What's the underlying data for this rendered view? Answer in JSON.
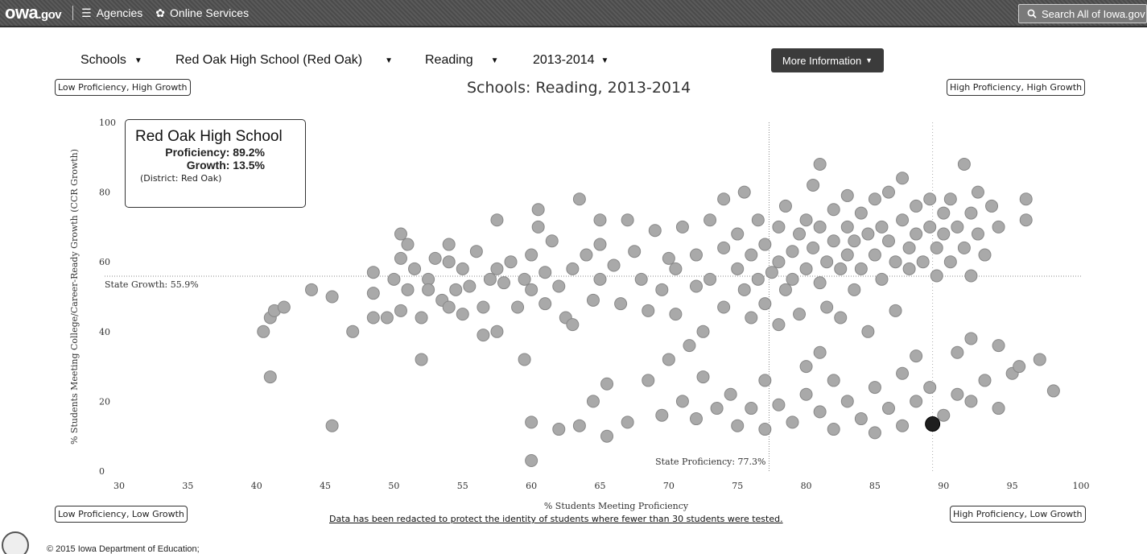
{
  "nav": {
    "logo_main": "owa",
    "logo_suffix": ".gov",
    "agencies_label": "Agencies",
    "agencies_icon": "list-icon",
    "services_label": "Online Services",
    "services_icon": "gear-icon",
    "search_label": "Search All of Iowa.gov",
    "search_icon": "search-icon"
  },
  "filters": {
    "level": "Schools",
    "school": "Red Oak High School (Red Oak)",
    "subject": "Reading",
    "year": "2013-2014",
    "more_info": "More Information"
  },
  "quadrants": {
    "top_left": "Low Proficiency, High Growth",
    "top_right": "High Proficiency, High Growth",
    "bottom_left": "Low Proficiency, Low Growth",
    "bottom_right": "High Proficiency, Low Growth"
  },
  "highlight": {
    "name": "Red Oak High School",
    "proficiency_text": "Proficiency: 89.2%",
    "growth_text": "Growth: 13.5%",
    "district_text": "(District: Red Oak)"
  },
  "redaction_note": "Data has been redacted to protect the identity of students where fewer than 30 students were tested.",
  "footer": "© 2015 Iowa Department of Education;",
  "colors": {
    "point_fill": "#a9a9a9",
    "point_stroke": "#888888",
    "highlight_fill": "#1e1e1e",
    "nav_bg": "#4f4f4f"
  },
  "chart_data": {
    "type": "scatter",
    "title": "Schools: Reading, 2013-2014",
    "xlabel": "% Students Meeting Proficiency",
    "ylabel": "% Students Meeting College/Career-Ready Growth (CCR Growth)",
    "xlim": [
      30,
      100
    ],
    "ylim": [
      0,
      100
    ],
    "xticks": [
      30,
      35,
      40,
      45,
      50,
      55,
      60,
      65,
      70,
      75,
      80,
      85,
      90,
      95,
      100
    ],
    "yticks": [
      0,
      20,
      40,
      60,
      80,
      100
    ],
    "reference_lines": {
      "state_proficiency": 77.3,
      "state_proficiency_label": "State Proficiency: 77.3%",
      "state_growth": 55.9,
      "state_growth_label": "State Growth: 55.9%"
    },
    "highlight_point": {
      "x": 89.2,
      "y": 13.5
    },
    "points": [
      [
        40.5,
        40
      ],
      [
        41,
        44
      ],
      [
        41.3,
        46
      ],
      [
        42,
        47
      ],
      [
        41,
        27
      ],
      [
        44,
        52
      ],
      [
        45.5,
        50
      ],
      [
        45.5,
        13
      ],
      [
        47,
        40
      ],
      [
        48.5,
        44
      ],
      [
        48.5,
        57
      ],
      [
        48.5,
        51
      ],
      [
        49.5,
        44
      ],
      [
        50.5,
        46
      ],
      [
        50,
        55
      ],
      [
        50.5,
        61
      ],
      [
        50.5,
        68
      ],
      [
        51,
        65
      ],
      [
        51,
        52
      ],
      [
        51.5,
        58
      ],
      [
        52,
        44
      ],
      [
        52,
        32
      ],
      [
        52.5,
        55
      ],
      [
        52.5,
        52
      ],
      [
        53,
        61
      ],
      [
        53.5,
        49
      ],
      [
        54,
        60
      ],
      [
        54,
        47
      ],
      [
        54,
        65
      ],
      [
        54.5,
        52
      ],
      [
        55,
        58
      ],
      [
        55,
        45
      ],
      [
        55.5,
        53
      ],
      [
        56,
        63
      ],
      [
        56.5,
        47
      ],
      [
        56.5,
        39
      ],
      [
        57,
        55
      ],
      [
        57.5,
        72
      ],
      [
        57.5,
        58
      ],
      [
        57.5,
        40
      ],
      [
        58,
        54
      ],
      [
        58.5,
        60
      ],
      [
        59,
        47
      ],
      [
        59.5,
        55
      ],
      [
        59.5,
        32
      ],
      [
        60,
        62
      ],
      [
        60,
        52
      ],
      [
        60,
        14
      ],
      [
        60,
        3
      ],
      [
        60.5,
        70
      ],
      [
        60.5,
        75
      ],
      [
        61,
        57
      ],
      [
        61,
        48
      ],
      [
        61.5,
        66
      ],
      [
        62,
        53
      ],
      [
        62,
        12
      ],
      [
        62.5,
        44
      ],
      [
        63,
        58
      ],
      [
        63,
        42
      ],
      [
        63.5,
        78
      ],
      [
        63.5,
        13
      ],
      [
        64,
        62
      ],
      [
        64.5,
        49
      ],
      [
        64.5,
        20
      ],
      [
        65,
        55
      ],
      [
        65,
        72
      ],
      [
        65,
        65
      ],
      [
        65.5,
        25
      ],
      [
        65.5,
        10
      ],
      [
        66,
        59
      ],
      [
        66.5,
        48
      ],
      [
        67,
        14
      ],
      [
        67,
        72
      ],
      [
        67.5,
        63
      ],
      [
        68,
        55
      ],
      [
        68.5,
        46
      ],
      [
        68.5,
        26
      ],
      [
        69,
        69
      ],
      [
        69.5,
        52
      ],
      [
        69.5,
        16
      ],
      [
        70,
        61
      ],
      [
        70,
        32
      ],
      [
        70.5,
        58
      ],
      [
        70.5,
        45
      ],
      [
        71,
        70
      ],
      [
        71,
        20
      ],
      [
        71.5,
        36
      ],
      [
        72,
        53
      ],
      [
        72,
        62
      ],
      [
        72,
        15
      ],
      [
        72.5,
        40
      ],
      [
        72.5,
        27
      ],
      [
        73,
        72
      ],
      [
        73,
        55
      ],
      [
        73.5,
        18
      ],
      [
        74,
        64
      ],
      [
        74,
        47
      ],
      [
        74,
        78
      ],
      [
        74.5,
        22
      ],
      [
        75,
        58
      ],
      [
        75,
        68
      ],
      [
        75,
        13
      ],
      [
        75.5,
        52
      ],
      [
        75.5,
        80
      ],
      [
        76,
        62
      ],
      [
        76,
        44
      ],
      [
        76,
        18
      ],
      [
        76.5,
        55
      ],
      [
        76.5,
        72
      ],
      [
        77,
        65
      ],
      [
        77,
        48
      ],
      [
        77,
        26
      ],
      [
        77,
        12
      ],
      [
        77.5,
        57
      ],
      [
        78,
        60
      ],
      [
        78,
        70
      ],
      [
        78,
        42
      ],
      [
        78,
        19
      ],
      [
        78.5,
        52
      ],
      [
        78.5,
        76
      ],
      [
        79,
        63
      ],
      [
        79,
        55
      ],
      [
        79,
        14
      ],
      [
        79.5,
        68
      ],
      [
        79.5,
        45
      ],
      [
        80,
        72
      ],
      [
        80,
        58
      ],
      [
        80,
        30
      ],
      [
        80,
        22
      ],
      [
        80.5,
        64
      ],
      [
        80.5,
        82
      ],
      [
        81,
        54
      ],
      [
        81,
        70
      ],
      [
        81,
        88
      ],
      [
        81,
        34
      ],
      [
        81,
        17
      ],
      [
        81.5,
        60
      ],
      [
        81.5,
        47
      ],
      [
        82,
        66
      ],
      [
        82,
        75
      ],
      [
        82,
        26
      ],
      [
        82,
        12
      ],
      [
        82.5,
        58
      ],
      [
        82.5,
        44
      ],
      [
        83,
        70
      ],
      [
        83,
        62
      ],
      [
        83,
        79
      ],
      [
        83,
        20
      ],
      [
        83.5,
        52
      ],
      [
        83.5,
        66
      ],
      [
        84,
        74
      ],
      [
        84,
        58
      ],
      [
        84,
        15
      ],
      [
        84.5,
        68
      ],
      [
        84.5,
        40
      ],
      [
        85,
        62
      ],
      [
        85,
        78
      ],
      [
        85,
        24
      ],
      [
        85,
        11
      ],
      [
        85.5,
        55
      ],
      [
        85.5,
        70
      ],
      [
        86,
        66
      ],
      [
        86,
        80
      ],
      [
        86,
        18
      ],
      [
        86.5,
        60
      ],
      [
        86.5,
        46
      ],
      [
        87,
        72
      ],
      [
        87,
        84
      ],
      [
        87,
        28
      ],
      [
        87,
        13
      ],
      [
        87.5,
        64
      ],
      [
        87.5,
        58
      ],
      [
        88,
        76
      ],
      [
        88,
        68
      ],
      [
        88,
        33
      ],
      [
        88,
        20
      ],
      [
        88.5,
        60
      ],
      [
        89,
        70
      ],
      [
        89,
        78
      ],
      [
        89,
        24
      ],
      [
        89.5,
        64
      ],
      [
        89.5,
        56
      ],
      [
        90,
        74
      ],
      [
        90,
        68
      ],
      [
        90,
        16
      ],
      [
        90.5,
        60
      ],
      [
        90.5,
        78
      ],
      [
        91,
        70
      ],
      [
        91,
        34
      ],
      [
        91,
        22
      ],
      [
        91.5,
        64
      ],
      [
        91.5,
        88
      ],
      [
        92,
        74
      ],
      [
        92,
        56
      ],
      [
        92,
        38
      ],
      [
        92,
        20
      ],
      [
        92.5,
        68
      ],
      [
        92.5,
        80
      ],
      [
        93,
        62
      ],
      [
        93,
        26
      ],
      [
        93.5,
        76
      ],
      [
        94,
        70
      ],
      [
        94,
        36
      ],
      [
        94,
        18
      ],
      [
        95,
        28
      ],
      [
        95.5,
        30
      ],
      [
        96,
        78
      ],
      [
        96,
        72
      ],
      [
        97,
        32
      ],
      [
        98,
        23
      ]
    ]
  }
}
